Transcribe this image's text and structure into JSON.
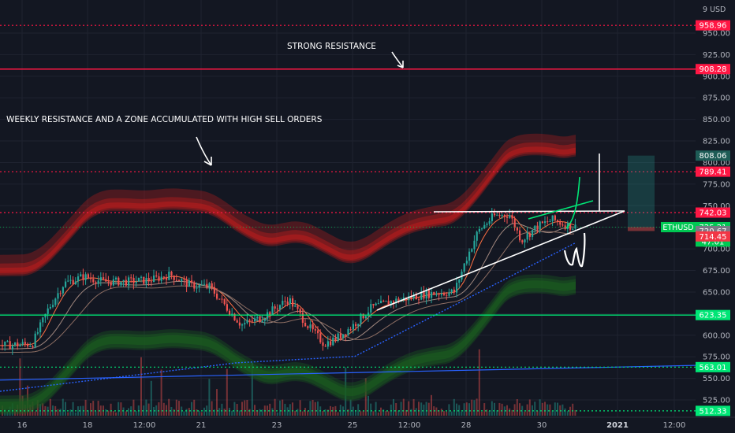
{
  "price_axis": {
    "currency_label": "9 USD",
    "ticks": [
      950,
      925,
      900,
      875,
      850,
      825,
      800,
      775,
      750,
      725,
      700,
      675,
      650,
      625,
      600,
      575,
      550,
      525
    ]
  },
  "time_axis": {
    "labels": [
      "16",
      "18",
      "12:00",
      "21",
      "23",
      "25",
      "12:00",
      "28",
      "30",
      "2021",
      "12:00"
    ]
  },
  "annotations": {
    "strong_resistance": "STRONG RESISTANCE",
    "weekly_resistance": "WEEKLY RESISTANCE AND A ZONE ACCUMULATED WITH HIGH SELL ORDERS"
  },
  "levels": [
    {
      "label": "958.96",
      "price": 958.96,
      "color": "#ff1744",
      "style": "dotted"
    },
    {
      "label": "908.28",
      "price": 908.28,
      "color": "#ff1744",
      "style": "solid"
    },
    {
      "label": "789.41",
      "price": 789.41,
      "color": "#ff1744",
      "style": "dotted"
    },
    {
      "label": "742.03",
      "price": 742.03,
      "color": "#ff1744",
      "style": "dotted"
    },
    {
      "label": "623.35",
      "price": 623.35,
      "color": "#00e676",
      "style": "solid"
    },
    {
      "label": "563.01",
      "price": 563.01,
      "color": "#00e676",
      "style": "dotted"
    },
    {
      "label": "512.33",
      "price": 512.33,
      "color": "#00e676",
      "style": "dotted"
    }
  ],
  "price_tags": [
    {
      "label": "808.06",
      "price": 808.06,
      "color": "#1e5c56"
    },
    {
      "label": "725.21",
      "price": 725.21,
      "color": "#00c853",
      "symbol": "ETHUSD"
    },
    {
      "label": "47:01",
      "price": 708.5,
      "color": "#00c853"
    },
    {
      "label": "720.67",
      "price": 720.67,
      "color": "#787b86"
    },
    {
      "label": "714.45",
      "price": 714.45,
      "color": "#f23645"
    }
  ],
  "colors": {
    "background": "#131722",
    "up": "#26a69a",
    "down": "#ef5350",
    "upper_band": "#b71c1c",
    "lower_band": "#1b5e20"
  },
  "chart_data": {
    "type": "candlestick",
    "title": "",
    "xlabel": "",
    "ylabel": "",
    "ylim": [
      505,
      975
    ],
    "x": [
      "16",
      "18",
      "12:00",
      "21",
      "23",
      "25",
      "12:00",
      "28",
      "30",
      "2021",
      "12:00"
    ],
    "close_path": [
      {
        "x": "16",
        "y": 588
      },
      {
        "x": "17",
        "y": 628
      },
      {
        "x": "18",
        "y": 668
      },
      {
        "x": "19",
        "y": 660
      },
      {
        "x": "20",
        "y": 662
      },
      {
        "x": "21",
        "y": 655
      },
      {
        "x": "22",
        "y": 615
      },
      {
        "x": "23",
        "y": 640
      },
      {
        "x": "24",
        "y": 595
      },
      {
        "x": "25",
        "y": 612
      },
      {
        "x": "26",
        "y": 640
      },
      {
        "x": "27",
        "y": 648
      },
      {
        "x": "28",
        "y": 728
      },
      {
        "x": "29",
        "y": 728
      },
      {
        "x": "30",
        "y": 725.21
      }
    ],
    "last_price": 725.21,
    "grid": true
  }
}
